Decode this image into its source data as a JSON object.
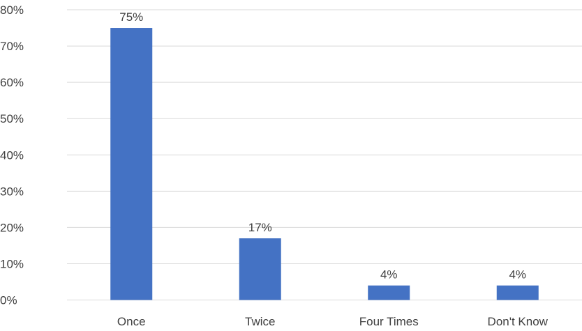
{
  "chart_data": {
    "type": "bar",
    "categories": [
      "Once",
      "Twice",
      "Four Times",
      "Don't Know"
    ],
    "values": [
      75,
      17,
      4,
      4
    ],
    "data_labels": [
      "75%",
      "17%",
      "4%",
      "4%"
    ],
    "ylim": [
      0,
      80
    ],
    "y_ticks": [
      0,
      10,
      20,
      30,
      40,
      50,
      60,
      70,
      80
    ],
    "y_tick_labels": [
      "0%",
      "10%",
      "20%",
      "30%",
      "40%",
      "50%",
      "60%",
      "70%",
      "80%"
    ],
    "title": "",
    "xlabel": "",
    "ylabel": "",
    "grid": true,
    "bar_color": "#4472c4"
  }
}
